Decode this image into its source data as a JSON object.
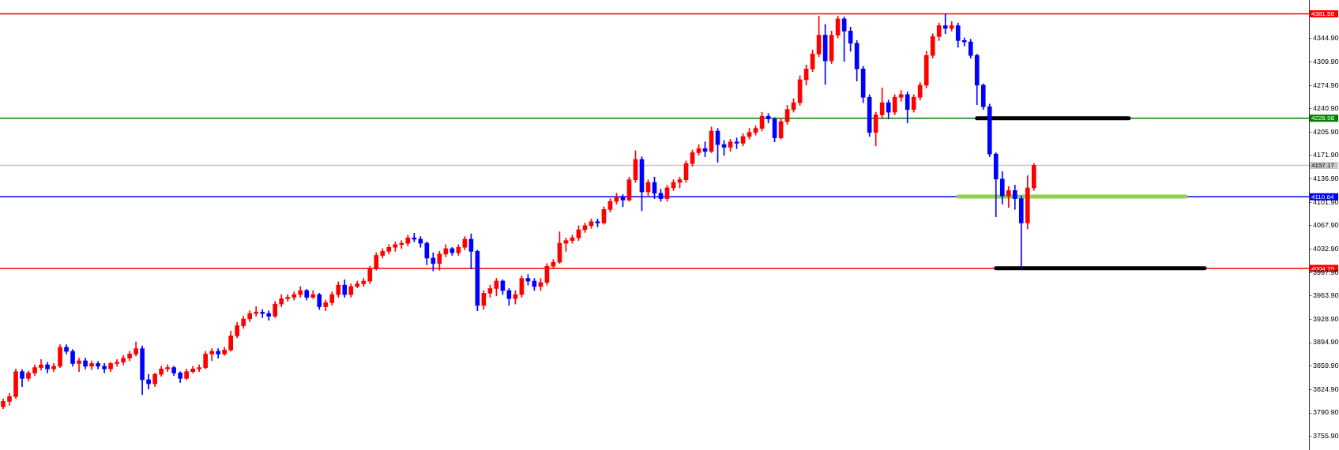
{
  "chart_data": {
    "type": "candlestick",
    "categories": [
      null,
      null,
      null,
      null,
      null,
      null,
      null,
      null,
      null,
      null,
      null,
      null,
      null,
      null,
      null,
      null,
      null,
      null,
      null,
      null,
      null,
      null,
      null,
      null,
      null,
      null,
      null,
      null,
      null,
      null,
      null,
      null,
      null,
      null,
      null,
      null,
      null,
      null,
      null,
      null,
      null,
      null,
      null,
      null,
      null,
      null,
      null,
      null,
      null,
      null,
      null,
      null,
      null,
      null,
      null,
      null,
      null,
      null,
      null,
      null,
      null,
      null,
      null,
      null,
      null,
      null,
      null,
      null,
      null,
      null,
      null,
      null,
      null,
      null,
      null,
      null,
      null,
      null,
      null,
      null,
      null,
      null,
      null,
      null,
      null,
      null,
      null,
      null,
      null,
      null,
      null,
      null,
      null,
      null,
      null,
      null,
      null,
      null,
      null,
      null,
      null,
      null,
      null,
      null,
      null,
      null,
      null,
      null,
      null,
      null,
      null,
      null,
      null,
      null,
      null,
      null,
      null,
      null,
      null,
      null,
      null,
      null,
      null,
      null,
      null,
      null,
      null,
      null,
      null,
      null,
      null,
      null,
      null,
      null,
      null,
      null,
      null,
      null,
      null,
      null,
      null,
      null,
      null,
      null,
      null,
      null,
      null,
      null,
      null,
      null,
      null,
      null,
      null,
      null,
      null,
      null,
      null,
      null,
      null,
      null,
      null,
      null,
      null,
      null,
      null,
      null,
      null,
      null,
      null,
      null,
      null,
      null,
      null,
      null,
      null,
      null,
      null,
      null,
      null,
      null,
      null,
      null,
      null,
      null,
      null,
      null,
      null,
      null,
      null,
      null,
      null,
      null,
      null,
      null,
      null,
      null,
      null,
      null,
      null,
      null,
      null,
      null,
      null,
      null,
      null,
      null,
      null
    ],
    "ohlc": [
      [
        3800,
        3812,
        3797,
        3808
      ],
      [
        3808,
        3820,
        3802,
        3815
      ],
      [
        3815,
        3856,
        3812,
        3852
      ],
      [
        3852,
        3855,
        3830,
        3842
      ],
      [
        3842,
        3853,
        3838,
        3850
      ],
      [
        3850,
        3862,
        3846,
        3858
      ],
      [
        3858,
        3870,
        3854,
        3862
      ],
      [
        3862,
        3866,
        3850,
        3856
      ],
      [
        3856,
        3864,
        3852,
        3860
      ],
      [
        3860,
        3892,
        3858,
        3888
      ],
      [
        3888,
        3892,
        3878,
        3882
      ],
      [
        3882,
        3885,
        3860,
        3864
      ],
      [
        3864,
        3872,
        3852,
        3868
      ],
      [
        3868,
        3872,
        3856,
        3860
      ],
      [
        3860,
        3868,
        3855,
        3864
      ],
      [
        3864,
        3867,
        3856,
        3860
      ],
      [
        3860,
        3864,
        3850,
        3856
      ],
      [
        3856,
        3866,
        3852,
        3864
      ],
      [
        3864,
        3870,
        3860,
        3866
      ],
      [
        3866,
        3876,
        3862,
        3872
      ],
      [
        3872,
        3882,
        3868,
        3878
      ],
      [
        3878,
        3896,
        3875,
        3886
      ],
      [
        3886,
        3890,
        3818,
        3840
      ],
      [
        3840,
        3848,
        3826,
        3834
      ],
      [
        3834,
        3850,
        3830,
        3848
      ],
      [
        3848,
        3860,
        3845,
        3856
      ],
      [
        3856,
        3862,
        3852,
        3858
      ],
      [
        3858,
        3860,
        3846,
        3850
      ],
      [
        3850,
        3852,
        3836,
        3842
      ],
      [
        3842,
        3856,
        3840,
        3852
      ],
      [
        3852,
        3860,
        3850,
        3856
      ],
      [
        3856,
        3862,
        3852,
        3858
      ],
      [
        3858,
        3882,
        3856,
        3878
      ],
      [
        3878,
        3886,
        3868,
        3882
      ],
      [
        3882,
        3886,
        3872,
        3878
      ],
      [
        3878,
        3888,
        3876,
        3884
      ],
      [
        3884,
        3912,
        3882,
        3905
      ],
      [
        3905,
        3925,
        3902,
        3920
      ],
      [
        3920,
        3934,
        3916,
        3930
      ],
      [
        3930,
        3942,
        3926,
        3938
      ],
      [
        3938,
        3948,
        3934,
        3940
      ],
      [
        3940,
        3944,
        3932,
        3938
      ],
      [
        3938,
        3942,
        3928,
        3934
      ],
      [
        3934,
        3956,
        3932,
        3952
      ],
      [
        3952,
        3966,
        3948,
        3960
      ],
      [
        3960,
        3966,
        3956,
        3962
      ],
      [
        3962,
        3970,
        3958,
        3966
      ],
      [
        3966,
        3978,
        3962,
        3972
      ],
      [
        3972,
        3974,
        3958,
        3962
      ],
      [
        3962,
        3972,
        3960,
        3966
      ],
      [
        3966,
        3968,
        3944,
        3948
      ],
      [
        3948,
        3958,
        3942,
        3954
      ],
      [
        3954,
        3970,
        3950,
        3966
      ],
      [
        3966,
        3985,
        3962,
        3980
      ],
      [
        3980,
        3988,
        3962,
        3966
      ],
      [
        3966,
        3982,
        3962,
        3978
      ],
      [
        3978,
        3986,
        3976,
        3982
      ],
      [
        3982,
        3990,
        3978,
        3986
      ],
      [
        3986,
        4008,
        3982,
        4004
      ],
      [
        4004,
        4028,
        4002,
        4024
      ],
      [
        4024,
        4034,
        4020,
        4030
      ],
      [
        4030,
        4040,
        4026,
        4036
      ],
      [
        4036,
        4044,
        4030,
        4040
      ],
      [
        4040,
        4046,
        4034,
        4042
      ],
      [
        4042,
        4054,
        4038,
        4050
      ],
      [
        4050,
        4057,
        4044,
        4048
      ],
      [
        4048,
        4052,
        4036,
        4042
      ],
      [
        4042,
        4044,
        4010,
        4020
      ],
      [
        4020,
        4028,
        4001,
        4012
      ],
      [
        4012,
        4030,
        4002,
        4026
      ],
      [
        4026,
        4040,
        4022,
        4034
      ],
      [
        4034,
        4036,
        4024,
        4028
      ],
      [
        4028,
        4040,
        4024,
        4036
      ],
      [
        4036,
        4052,
        4032,
        4048
      ],
      [
        4048,
        4056,
        4004,
        4030
      ],
      [
        4030,
        4032,
        3942,
        3950
      ],
      [
        3950,
        3972,
        3944,
        3968
      ],
      [
        3968,
        3980,
        3962,
        3975
      ],
      [
        3975,
        3990,
        3964,
        3986
      ],
      [
        3986,
        3988,
        3966,
        3972
      ],
      [
        3972,
        3975,
        3950,
        3960
      ],
      [
        3960,
        3972,
        3952,
        3966
      ],
      [
        3966,
        3994,
        3962,
        3990
      ],
      [
        3990,
        3996,
        3980,
        3986
      ],
      [
        3986,
        3990,
        3972,
        3978
      ],
      [
        3978,
        3990,
        3972,
        3984
      ],
      [
        3984,
        4012,
        3980,
        4008
      ],
      [
        4008,
        4018,
        4004,
        4014
      ],
      [
        4014,
        4059,
        4012,
        4042
      ],
      [
        4042,
        4050,
        4030,
        4046
      ],
      [
        4046,
        4054,
        4042,
        4050
      ],
      [
        4050,
        4068,
        4046,
        4062
      ],
      [
        4062,
        4072,
        4058,
        4068
      ],
      [
        4068,
        4078,
        4064,
        4074
      ],
      [
        4074,
        4078,
        4066,
        4072
      ],
      [
        4072,
        4096,
        4070,
        4092
      ],
      [
        4092,
        4108,
        4088,
        4104
      ],
      [
        4104,
        4116,
        4100,
        4110
      ],
      [
        4110,
        4114,
        4096,
        4106
      ],
      [
        4106,
        4140,
        4104,
        4136
      ],
      [
        4136,
        4179,
        4132,
        4166
      ],
      [
        4166,
        4170,
        4090,
        4118
      ],
      [
        4118,
        4136,
        4112,
        4132
      ],
      [
        4132,
        4140,
        4108,
        4116
      ],
      [
        4116,
        4122,
        4104,
        4108
      ],
      [
        4108,
        4128,
        4104,
        4124
      ],
      [
        4124,
        4136,
        4120,
        4132
      ],
      [
        4132,
        4140,
        4124,
        4136
      ],
      [
        4136,
        4164,
        4132,
        4160
      ],
      [
        4160,
        4180,
        4156,
        4176
      ],
      [
        4176,
        4188,
        4172,
        4182
      ],
      [
        4182,
        4192,
        4170,
        4178
      ],
      [
        4178,
        4214,
        4176,
        4208
      ],
      [
        4208,
        4212,
        4162,
        4188
      ],
      [
        4188,
        4194,
        4172,
        4184
      ],
      [
        4184,
        4196,
        4178,
        4192
      ],
      [
        4192,
        4198,
        4182,
        4190
      ],
      [
        4190,
        4204,
        4186,
        4200
      ],
      [
        4200,
        4212,
        4196,
        4206
      ],
      [
        4206,
        4216,
        4202,
        4212
      ],
      [
        4212,
        4236,
        4208,
        4230
      ],
      [
        4230,
        4234,
        4220,
        4226
      ],
      [
        4226,
        4228,
        4192,
        4198
      ],
      [
        4198,
        4226,
        4196,
        4222
      ],
      [
        4222,
        4246,
        4218,
        4240
      ],
      [
        4240,
        4256,
        4236,
        4250
      ],
      [
        4250,
        4290,
        4246,
        4284
      ],
      [
        4284,
        4306,
        4276,
        4300
      ],
      [
        4300,
        4328,
        4296,
        4322
      ],
      [
        4322,
        4378,
        4318,
        4350
      ],
      [
        4350,
        4366,
        4277,
        4312
      ],
      [
        4312,
        4356,
        4308,
        4350
      ],
      [
        4350,
        4378,
        4346,
        4374
      ],
      [
        4374,
        4377,
        4311,
        4356
      ],
      [
        4356,
        4362,
        4326,
        4338
      ],
      [
        4338,
        4342,
        4282,
        4300
      ],
      [
        4300,
        4304,
        4250,
        4258
      ],
      [
        4258,
        4262,
        4200,
        4206
      ],
      [
        4206,
        4236,
        4186,
        4232
      ],
      [
        4232,
        4272,
        4226,
        4250
      ],
      [
        4250,
        4254,
        4226,
        4236
      ],
      [
        4236,
        4262,
        4232,
        4258
      ],
      [
        4258,
        4268,
        4252,
        4262
      ],
      [
        4262,
        4266,
        4220,
        4240
      ],
      [
        4240,
        4262,
        4236,
        4258
      ],
      [
        4258,
        4280,
        4254,
        4276
      ],
      [
        4276,
        4326,
        4272,
        4320
      ],
      [
        4320,
        4352,
        4316,
        4348
      ],
      [
        4348,
        4368,
        4342,
        4364
      ],
      [
        4364,
        4381.56,
        4352,
        4360
      ],
      [
        4360,
        4370,
        4356,
        4364
      ],
      [
        4364,
        4368,
        4332,
        4342
      ],
      [
        4342,
        4346,
        4334,
        4340
      ],
      [
        4340,
        4344,
        4316,
        4320
      ],
      [
        4320,
        4322,
        4247,
        4276
      ],
      [
        4276,
        4278,
        4240,
        4244
      ],
      [
        4244,
        4248,
        4170,
        4174
      ],
      [
        4174,
        4176,
        4081,
        4137
      ],
      [
        4137,
        4148,
        4100,
        4112
      ],
      [
        4112,
        4126,
        4095,
        4120
      ],
      [
        4120,
        4128,
        4092,
        4108
      ],
      [
        4108,
        4112,
        4004.79,
        4072
      ],
      [
        4072,
        4142,
        4063,
        4124
      ],
      [
        4124,
        4160,
        4120,
        4157.17
      ],
      null,
      null,
      null,
      null,
      null,
      null,
      null,
      null,
      null,
      null,
      null,
      null,
      null,
      null,
      null,
      null,
      null,
      null,
      null,
      null,
      null,
      null,
      null,
      null,
      null,
      null,
      null,
      null,
      null,
      null,
      null,
      null,
      null,
      null,
      null,
      null,
      null,
      null,
      null,
      null,
      null,
      null,
      null
    ],
    "colors": [
      "#ff0000",
      "#ff0000",
      "#ff0000",
      "#0000ff",
      "#ff0000",
      "#ff0000",
      "#ff0000",
      "#0000ff",
      "#ff0000",
      "#ff0000",
      "#0000ff",
      "#0000ff",
      "#ff0000",
      "#0000ff",
      "#ff0000",
      "#0000ff",
      "#0000ff",
      "#ff0000",
      "#ff0000",
      "#ff0000",
      "#ff0000",
      "#ff0000",
      "#0000ff",
      "#0000ff",
      "#ff0000",
      "#ff0000",
      "#ff0000",
      "#0000ff",
      "#0000ff",
      "#ff0000",
      "#ff0000",
      "#ff0000",
      "#ff0000",
      "#ff0000",
      "#0000ff",
      "#ff0000",
      "#ff0000",
      "#ff0000",
      "#ff0000",
      "#ff0000",
      "#ff0000",
      "#0000ff",
      "#0000ff",
      "#ff0000",
      "#ff0000",
      "#ff0000",
      "#ff0000",
      "#ff0000",
      "#0000ff",
      "#ff0000",
      "#0000ff",
      "#ff0000",
      "#ff0000",
      "#ff0000",
      "#0000ff",
      "#ff0000",
      "#ff0000",
      "#ff0000",
      "#ff0000",
      "#ff0000",
      "#ff0000",
      "#ff0000",
      "#ff0000",
      "#ff0000",
      "#ff0000",
      "#0000ff",
      "#0000ff",
      "#0000ff",
      "#0000ff",
      "#ff0000",
      "#ff0000",
      "#0000ff",
      "#ff0000",
      "#ff0000",
      "#0000ff",
      "#0000ff",
      "#ff0000",
      "#ff0000",
      "#ff0000",
      "#0000ff",
      "#0000ff",
      "#ff0000",
      "#ff0000",
      "#0000ff",
      "#0000ff",
      "#ff0000",
      "#ff0000",
      "#ff0000",
      "#ff0000",
      "#ff0000",
      "#ff0000",
      "#ff0000",
      "#ff0000",
      "#ff0000",
      "#0000ff",
      "#ff0000",
      "#ff0000",
      "#ff0000",
      "#0000ff",
      "#ff0000",
      "#ff0000",
      "#0000ff",
      "#ff0000",
      "#0000ff",
      "#0000ff",
      "#ff0000",
      "#ff0000",
      "#ff0000",
      "#ff0000",
      "#ff0000",
      "#ff0000",
      "#0000ff",
      "#ff0000",
      "#0000ff",
      "#0000ff",
      "#ff0000",
      "#0000ff",
      "#ff0000",
      "#ff0000",
      "#ff0000",
      "#ff0000",
      "#0000ff",
      "#0000ff",
      "#ff0000",
      "#ff0000",
      "#ff0000",
      "#ff0000",
      "#ff0000",
      "#ff0000",
      "#ff0000",
      "#0000ff",
      "#ff0000",
      "#ff0000",
      "#0000ff",
      "#0000ff",
      "#0000ff",
      "#0000ff",
      "#0000ff",
      "#ff0000",
      "#ff0000",
      "#0000ff",
      "#ff0000",
      "#ff0000",
      "#0000ff",
      "#ff0000",
      "#ff0000",
      "#ff0000",
      "#ff0000",
      "#ff0000",
      "#0000ff",
      "#ff0000",
      "#0000ff",
      "#0000ff",
      "#0000ff",
      "#0000ff",
      "#0000ff",
      "#0000ff",
      "#0000ff",
      "#0000ff",
      "#ff0000",
      "#0000ff",
      "#0000ff",
      "#ff0000",
      "#ff0000",
      null,
      null,
      null,
      null,
      null,
      null,
      null,
      null,
      null,
      null,
      null,
      null,
      null,
      null,
      null,
      null,
      null,
      null,
      null,
      null,
      null,
      null,
      null,
      null,
      null,
      null,
      null,
      null,
      null,
      null,
      null,
      null,
      null,
      null,
      null,
      null,
      null,
      null,
      null,
      null,
      null,
      null,
      null
    ],
    "ylim": [
      3736,
      4402
    ],
    "yticks": [
      {
        "value": 4344.9,
        "label": "4344.90"
      },
      {
        "value": 4309.9,
        "label": "4309.90"
      },
      {
        "value": 4274.9,
        "label": "4274.90"
      },
      {
        "value": 4240.9,
        "label": "4240.90"
      },
      {
        "value": 4205.9,
        "label": "4205.90"
      },
      {
        "value": 4171.9,
        "label": "4171.90"
      },
      {
        "value": 4136.9,
        "label": "4136.90"
      },
      {
        "value": 4101.9,
        "label": "4101.90"
      },
      {
        "value": 4067.9,
        "label": "4067.90"
      },
      {
        "value": 4032.9,
        "label": "4032.90"
      },
      {
        "value": 3997.9,
        "label": "3997.90"
      },
      {
        "value": 3963.9,
        "label": "3963.90"
      },
      {
        "value": 3928.9,
        "label": "3928.90"
      },
      {
        "value": 3894.9,
        "label": "3894.90"
      },
      {
        "value": 3859.9,
        "label": "3859.90"
      },
      {
        "value": 3824.9,
        "label": "3824.90"
      },
      {
        "value": 3790.9,
        "label": "3790.90"
      },
      {
        "value": 3755.9,
        "label": "3755.90"
      }
    ],
    "tick_labels": "y",
    "ref_lines": [
      {
        "axis": "y",
        "value": 4381.56,
        "label": "4381.56",
        "color": "#ff0000"
      },
      {
        "axis": "y",
        "value": 4226.98,
        "label": "4226.98",
        "color": "#008000"
      },
      {
        "axis": "y",
        "value": 4157.17,
        "label": "4157.17",
        "color": "#c8c8c8"
      },
      {
        "axis": "y",
        "value": 4110.64,
        "label": "4110.64",
        "color": "#0000ff"
      },
      {
        "axis": "y",
        "value": 4004.79,
        "label": "4004.79",
        "color": "#ff0000"
      }
    ],
    "series": [
      {
        "type": "line",
        "color": "#92d050",
        "values": [
          null,
          null,
          null,
          null,
          null,
          null,
          null,
          null,
          null,
          null,
          null,
          null,
          null,
          null,
          null,
          null,
          null,
          null,
          null,
          null,
          null,
          null,
          null,
          null,
          null,
          null,
          null,
          null,
          null,
          null,
          null,
          null,
          null,
          null,
          null,
          null,
          null,
          null,
          null,
          null,
          null,
          null,
          null,
          null,
          null,
          null,
          null,
          null,
          null,
          null,
          null,
          null,
          null,
          null,
          null,
          null,
          null,
          null,
          null,
          null,
          null,
          null,
          null,
          null,
          null,
          null,
          null,
          null,
          null,
          null,
          null,
          null,
          null,
          null,
          null,
          null,
          null,
          null,
          null,
          null,
          null,
          null,
          null,
          null,
          null,
          null,
          null,
          null,
          null,
          null,
          null,
          null,
          null,
          null,
          null,
          null,
          null,
          null,
          null,
          null,
          null,
          null,
          null,
          null,
          null,
          null,
          null,
          null,
          null,
          null,
          null,
          null,
          null,
          null,
          null,
          null,
          null,
          null,
          null,
          null,
          null,
          null,
          null,
          null,
          null,
          null,
          null,
          null,
          null,
          null,
          null,
          null,
          null,
          null,
          null,
          null,
          null,
          null,
          null,
          null,
          null,
          null,
          null,
          null,
          null,
          null,
          null,
          null,
          null,
          null,
          null,
          4111,
          4111,
          4111,
          4111,
          4111,
          4111,
          4111,
          4111,
          4111,
          4111,
          4111,
          4111,
          4111,
          4111,
          4111,
          4111,
          4111,
          4111,
          4111,
          4111,
          4111,
          4111,
          4111,
          4111,
          4111,
          4111,
          4111,
          4111,
          4111,
          4111,
          4111,
          4111,
          4111,
          4111,
          4111,
          4111,
          4111,
          null,
          null,
          null,
          null,
          null,
          null,
          null,
          null,
          null,
          null,
          null,
          null,
          null,
          null,
          null,
          null,
          null,
          null,
          null
        ]
      },
      {
        "type": "line",
        "color": "#000000",
        "values": [
          null,
          null,
          null,
          null,
          null,
          null,
          null,
          null,
          null,
          null,
          null,
          null,
          null,
          null,
          null,
          null,
          null,
          null,
          null,
          null,
          null,
          null,
          null,
          null,
          null,
          null,
          null,
          null,
          null,
          null,
          null,
          null,
          null,
          null,
          null,
          null,
          null,
          null,
          null,
          null,
          null,
          null,
          null,
          null,
          null,
          null,
          null,
          null,
          null,
          null,
          null,
          null,
          null,
          null,
          null,
          null,
          null,
          null,
          null,
          null,
          null,
          null,
          null,
          null,
          null,
          null,
          null,
          null,
          null,
          null,
          null,
          null,
          null,
          null,
          null,
          null,
          null,
          null,
          null,
          null,
          null,
          null,
          null,
          null,
          null,
          null,
          null,
          null,
          null,
          null,
          null,
          null,
          null,
          null,
          null,
          null,
          null,
          null,
          null,
          null,
          null,
          null,
          null,
          null,
          null,
          null,
          null,
          null,
          null,
          null,
          null,
          null,
          null,
          null,
          null,
          null,
          null,
          null,
          null,
          null,
          null,
          null,
          null,
          null,
          null,
          null,
          null,
          null,
          null,
          null,
          null,
          null,
          null,
          null,
          null,
          null,
          null,
          null,
          null,
          null,
          null,
          null,
          null,
          null,
          null,
          null,
          null,
          null,
          null,
          null,
          null,
          null,
          null,
          null,
          4227,
          4227,
          4227,
          4227,
          4227,
          4227,
          4227,
          4227,
          4227,
          4227,
          4227,
          4227,
          4227,
          4227,
          4227,
          4227,
          4227,
          4227,
          4227,
          4227,
          4227,
          4227,
          4227,
          4227,
          4227,
          null,
          null,
          null,
          null,
          null,
          null,
          null,
          null,
          null,
          null,
          null,
          null,
          null,
          null,
          null,
          null,
          null,
          null,
          null,
          null,
          null,
          null,
          null,
          null,
          null,
          null,
          null,
          null
        ]
      },
      {
        "type": "line",
        "color": "#000000",
        "values": [
          null,
          null,
          null,
          null,
          null,
          null,
          null,
          null,
          null,
          null,
          null,
          null,
          null,
          null,
          null,
          null,
          null,
          null,
          null,
          null,
          null,
          null,
          null,
          null,
          null,
          null,
          null,
          null,
          null,
          null,
          null,
          null,
          null,
          null,
          null,
          null,
          null,
          null,
          null,
          null,
          null,
          null,
          null,
          null,
          null,
          null,
          null,
          null,
          null,
          null,
          null,
          null,
          null,
          null,
          null,
          null,
          null,
          null,
          null,
          null,
          null,
          null,
          null,
          null,
          null,
          null,
          null,
          null,
          null,
          null,
          null,
          null,
          null,
          null,
          null,
          null,
          null,
          null,
          null,
          null,
          null,
          null,
          null,
          null,
          null,
          null,
          null,
          null,
          null,
          null,
          null,
          null,
          null,
          null,
          null,
          null,
          null,
          null,
          null,
          null,
          null,
          null,
          null,
          null,
          null,
          null,
          null,
          null,
          null,
          null,
          null,
          null,
          null,
          null,
          null,
          null,
          null,
          null,
          null,
          null,
          null,
          null,
          null,
          null,
          null,
          null,
          null,
          null,
          null,
          null,
          null,
          null,
          null,
          null,
          null,
          null,
          null,
          null,
          null,
          null,
          null,
          null,
          null,
          null,
          null,
          null,
          null,
          null,
          null,
          null,
          null,
          null,
          null,
          null,
          null,
          null,
          null,
          4005,
          4005,
          4005,
          4005,
          4005,
          4005,
          4005,
          4005,
          4005,
          4005,
          4005,
          4005,
          4005,
          4005,
          4005,
          4005,
          4005,
          4005,
          4005,
          4005,
          4005,
          4005,
          4005,
          4005,
          4005,
          4005,
          4005,
          4005,
          4005,
          4005,
          4005,
          4005,
          4005,
          4005,
          null,
          null,
          null,
          null,
          null,
          null,
          null,
          null,
          null,
          null,
          null,
          null,
          null,
          null,
          null,
          null
        ]
      }
    ]
  }
}
